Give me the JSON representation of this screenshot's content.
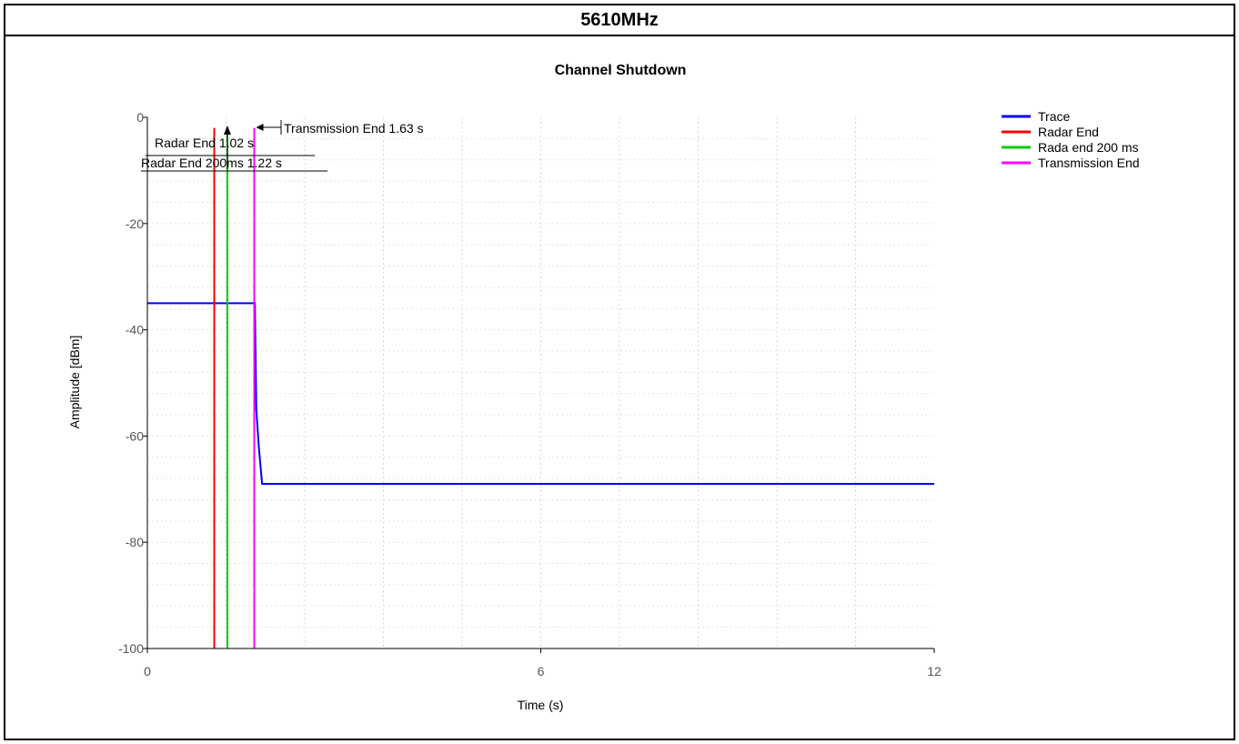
{
  "header": {
    "title": "5610MHz"
  },
  "chart_data": {
    "type": "line",
    "title": "Channel Shutdown",
    "xlabel": "Time (s)",
    "ylabel": "Amplitude [dBm]",
    "xlim": [
      0,
      12
    ],
    "ylim": [
      -100,
      0
    ],
    "x_ticks": [
      "0",
      "6",
      "12"
    ],
    "y_ticks": [
      "0",
      "-20",
      "-40",
      "-60",
      "-80",
      "-100"
    ],
    "grid": true,
    "legend_position": "right",
    "series": [
      {
        "name": "Trace",
        "color": "#0000ff",
        "x": [
          0,
          0.3,
          0.6,
          0.9,
          1.2,
          1.5,
          1.64,
          1.66,
          1.7,
          1.75,
          2,
          4,
          6,
          8,
          10,
          12
        ],
        "y": [
          -35,
          -35,
          -35,
          -35,
          -35,
          -35,
          -35,
          -55,
          -62,
          -69,
          -69,
          -69,
          -69,
          -69,
          -69,
          -69
        ]
      },
      {
        "name": "Radar End",
        "color": "#ff0000",
        "x": 1.02
      },
      {
        "name": "Rada end 200 ms",
        "color": "#00cc00",
        "x": 1.22
      },
      {
        "name": "Transmission End",
        "color": "#ff00ff",
        "x": 1.63
      }
    ],
    "annotations": [
      {
        "text": "Transmission End 1.63 s",
        "x": 1.63
      },
      {
        "text": "Radar End 1.02 s",
        "x": 1.02
      },
      {
        "text": "Radar End 200ms 1.22 s",
        "x": 1.22
      }
    ]
  }
}
